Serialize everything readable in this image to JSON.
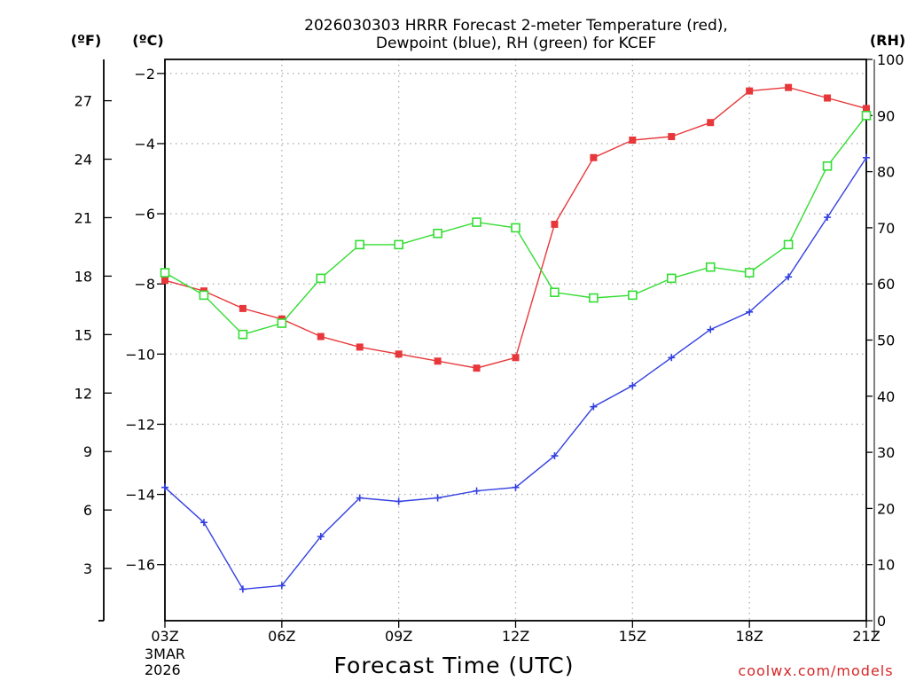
{
  "chart_data": {
    "type": "line",
    "title_line1": "2026030303 HRRR Forecast 2-meter Temperature (red),",
    "title_line2": "Dewpoint (blue), RH (green) for KCEF",
    "xlabel": "Forecast Time (UTC)",
    "credit": "coolwx.com/models",
    "x_labels": [
      "03Z",
      "06Z",
      "09Z",
      "12Z",
      "15Z",
      "18Z",
      "21Z"
    ],
    "x_label_hours": [
      3,
      6,
      9,
      12,
      15,
      18,
      21
    ],
    "date_label_line1": "3MAR",
    "date_label_line2": "2026",
    "xlim": [
      3,
      21
    ],
    "y_celsius": {
      "unit_label": "(ºC)",
      "ylim": [
        -17.6,
        -1.6
      ],
      "ticks": [
        -2,
        -4,
        -6,
        -8,
        -10,
        -12,
        -14,
        -16
      ],
      "tick_labels": [
        "−2",
        "−4",
        "−6",
        "−8",
        "−10",
        "−12",
        "−14",
        "−16"
      ]
    },
    "y_fahrenheit": {
      "unit_label": "(ºF)",
      "ticks": [
        27,
        24,
        21,
        18,
        15,
        12,
        9,
        6,
        3
      ],
      "tick_labels": [
        "27",
        "24",
        "21",
        "18",
        "15",
        "12",
        "9",
        "6",
        "3"
      ]
    },
    "y_rh": {
      "unit_label": "(RH)",
      "ylim": [
        0,
        100
      ],
      "ticks": [
        0,
        10,
        20,
        30,
        40,
        50,
        60,
        70,
        80,
        90,
        100
      ],
      "tick_labels": [
        "0",
        "10",
        "20",
        "30",
        "40",
        "50",
        "60",
        "70",
        "80",
        "90",
        "100"
      ]
    },
    "hours": [
      3,
      4,
      5,
      6,
      7,
      8,
      9,
      10,
      11,
      12,
      13,
      14,
      15,
      16,
      17,
      18,
      19,
      20,
      21
    ],
    "series": [
      {
        "name": "Temperature",
        "axis": "celsius",
        "color": "#e8373a",
        "marker": "filled-square",
        "values": [
          -7.9,
          -8.2,
          -8.7,
          -9.0,
          -9.5,
          -9.8,
          -10.0,
          -10.2,
          -10.4,
          -10.1,
          -6.3,
          -4.4,
          -3.9,
          -3.8,
          -3.4,
          -2.5,
          -2.4,
          -2.7,
          -3.0
        ]
      },
      {
        "name": "Dewpoint",
        "axis": "celsius",
        "color": "#3340e0",
        "marker": "plus",
        "values": [
          -13.8,
          -14.8,
          -16.7,
          -16.6,
          -15.2,
          -14.1,
          -14.2,
          -14.1,
          -13.9,
          -13.8,
          -12.9,
          -11.5,
          -10.9,
          -10.1,
          -9.3,
          -8.8,
          -7.8,
          -6.1,
          -4.4
        ]
      },
      {
        "name": "RH",
        "axis": "rh",
        "color": "#33dd33",
        "marker": "open-square",
        "values": [
          62,
          58,
          51,
          53,
          61,
          67,
          67,
          69,
          71,
          70,
          58.5,
          57.5,
          58,
          61,
          63,
          62,
          67,
          81,
          90
        ]
      }
    ]
  }
}
